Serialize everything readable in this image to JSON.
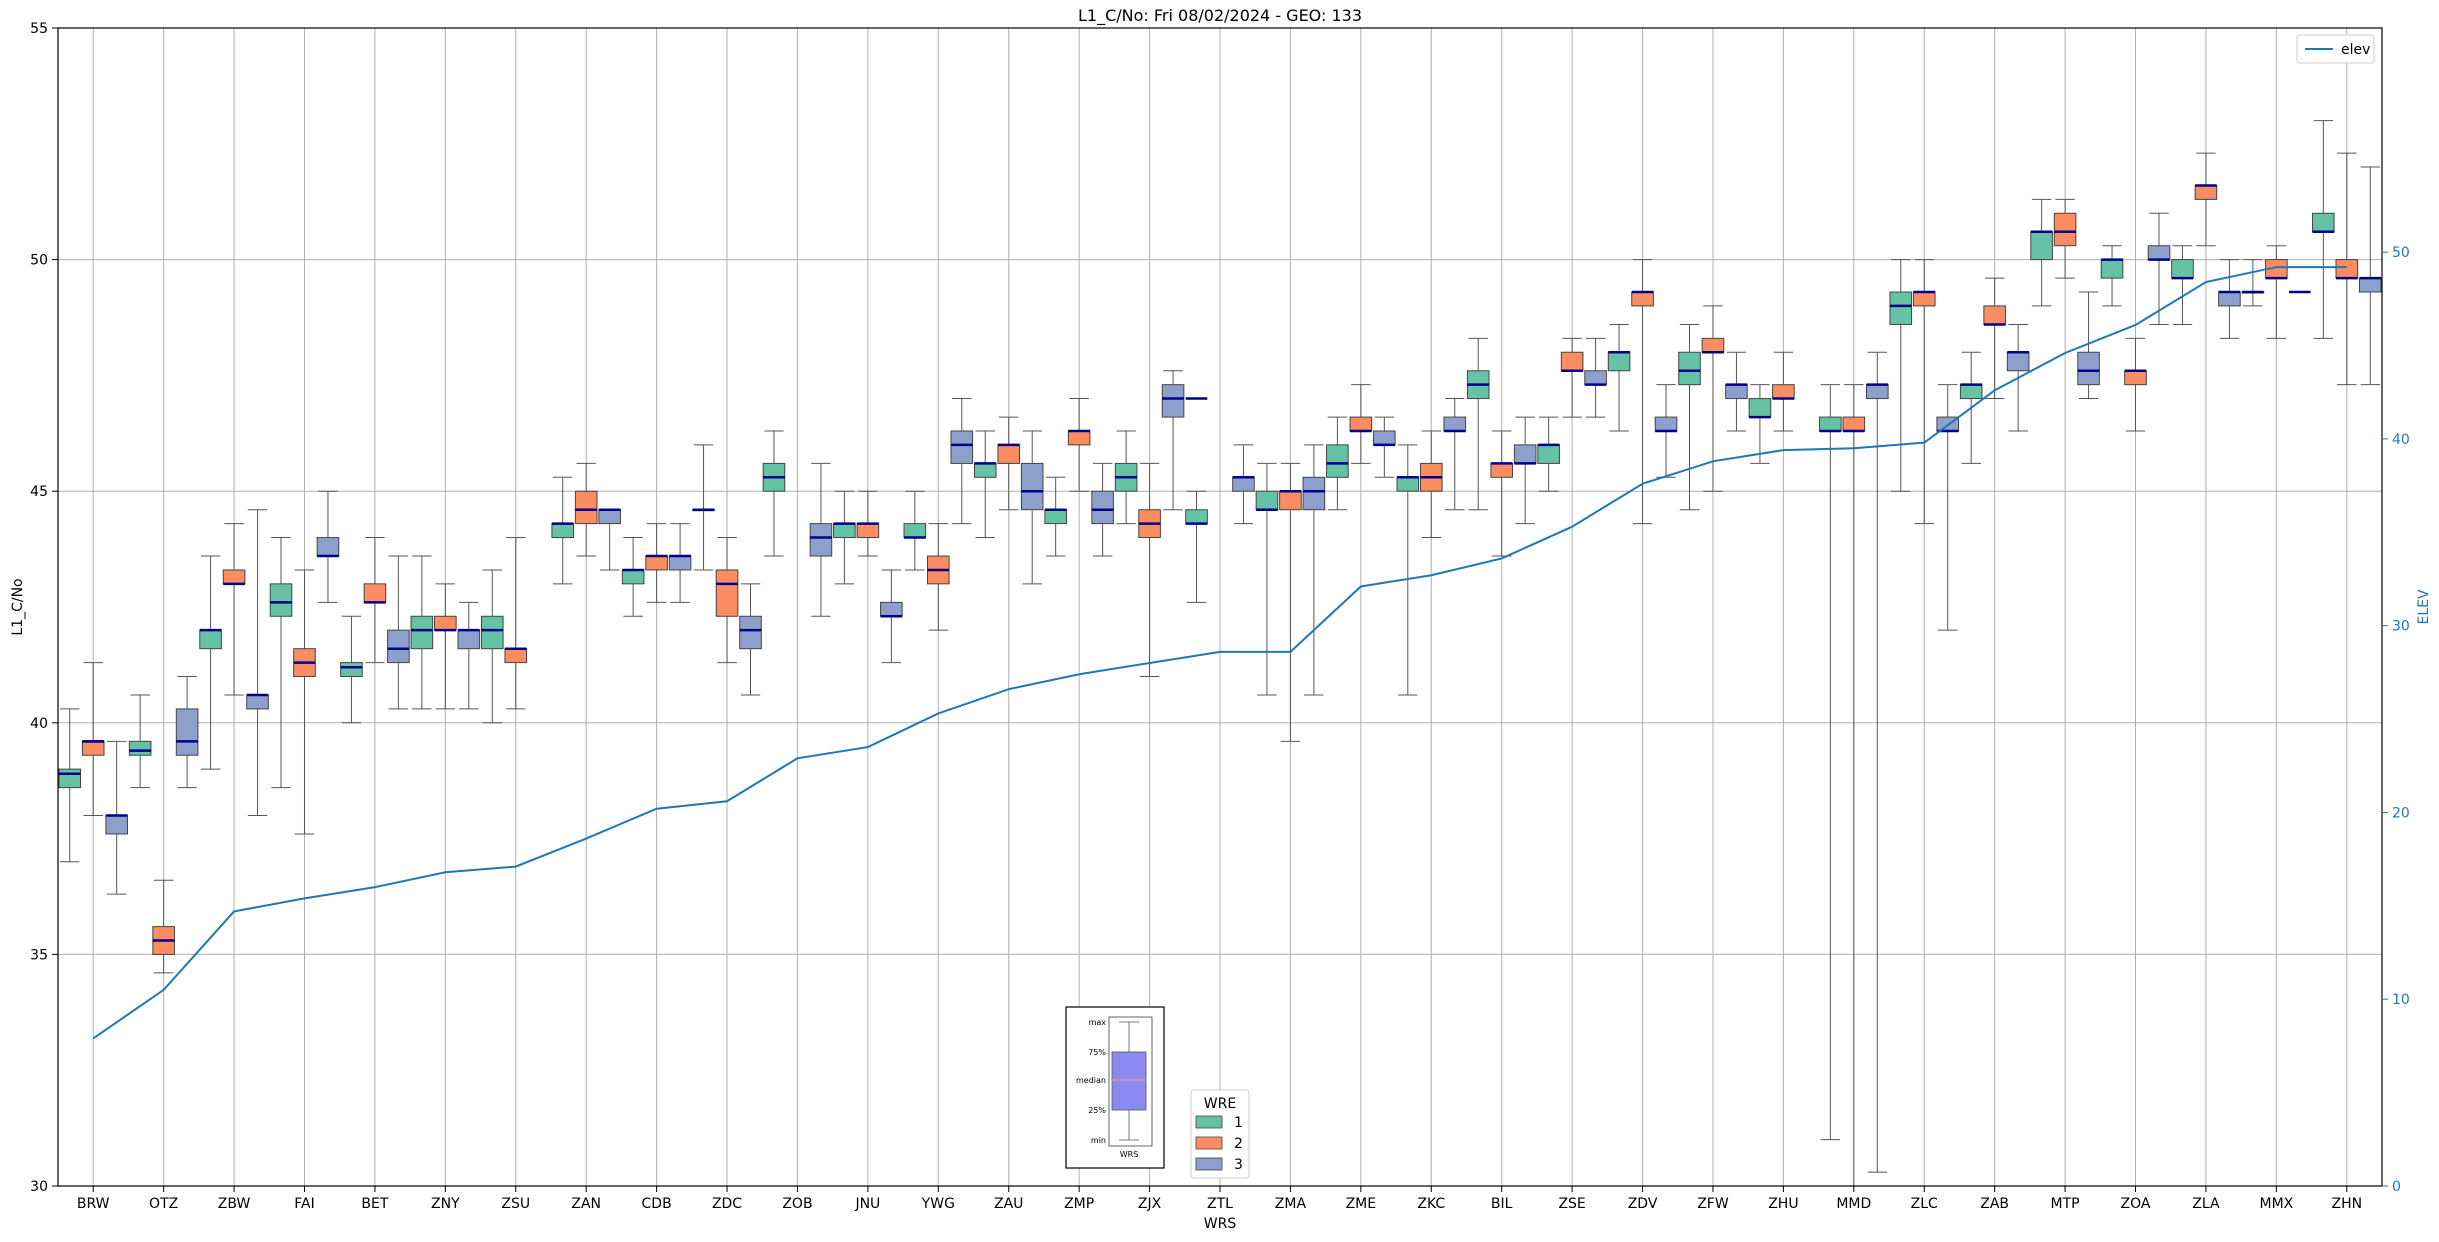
{
  "chart_data": {
    "type": "box",
    "title": "L1_C/No: Fri 08/02/2024 - GEO: 133",
    "xlabel": "WRS",
    "ylabel": "L1_C/No",
    "ylabel_right": "ELEV",
    "ylim": [
      30,
      55
    ],
    "ylim_right": [
      0,
      62
    ],
    "yticks": [
      30,
      35,
      40,
      45,
      50,
      55
    ],
    "yticks_right": [
      0,
      10,
      20,
      30,
      40,
      50
    ],
    "grid": true,
    "categories": [
      "BRW",
      "OTZ",
      "ZBW",
      "FAI",
      "BET",
      "ZNY",
      "ZSU",
      "ZAN",
      "CDB",
      "ZDC",
      "ZOB",
      "JNU",
      "YWG",
      "ZAU",
      "ZMP",
      "ZJX",
      "ZTL",
      "ZMA",
      "ZME",
      "ZKC",
      "BIL",
      "ZSE",
      "ZDV",
      "ZFW",
      "ZHU",
      "MMD",
      "ZLC",
      "ZAB",
      "MTP",
      "ZOA",
      "ZLA",
      "MMX",
      "ZHN"
    ],
    "wre_legend": {
      "title": "WRE",
      "entries": [
        {
          "label": "1",
          "color": "#66c2a5"
        },
        {
          "label": "2",
          "color": "#fc8d62"
        },
        {
          "label": "3",
          "color": "#8da0cb"
        }
      ]
    },
    "series": [
      {
        "name": "1",
        "color": "#66c2a5",
        "boxes": [
          [
            37.0,
            38.6,
            38.9,
            39.0,
            40.3
          ],
          [
            38.6,
            39.3,
            39.4,
            39.6,
            40.6
          ],
          [
            39.0,
            41.6,
            42.0,
            42.0,
            43.6
          ],
          [
            38.6,
            42.3,
            42.6,
            43.0,
            44.0
          ],
          [
            40.0,
            41.0,
            41.2,
            41.3,
            42.3
          ],
          [
            40.3,
            41.6,
            42.0,
            42.3,
            43.6
          ],
          [
            40.0,
            41.6,
            42.0,
            42.3,
            43.3
          ],
          [
            43.0,
            44.0,
            44.3,
            44.3,
            45.3
          ],
          [
            42.3,
            43.0,
            43.3,
            43.3,
            44.0
          ],
          [
            43.3,
            44.6,
            44.6,
            44.6,
            46.0
          ],
          [
            43.6,
            45.0,
            45.3,
            45.6,
            46.3
          ],
          [
            43.0,
            44.0,
            44.3,
            44.3,
            45.0
          ],
          [
            43.3,
            44.0,
            44.0,
            44.3,
            45.0
          ],
          [
            44.0,
            45.3,
            45.6,
            45.6,
            46.3
          ],
          [
            43.6,
            44.3,
            44.6,
            44.6,
            45.3
          ],
          [
            44.3,
            45.0,
            45.3,
            45.6,
            46.3
          ],
          [
            42.6,
            44.3,
            44.3,
            44.6,
            45.0
          ],
          [
            40.6,
            44.6,
            44.6,
            45.0,
            45.6
          ],
          [
            44.6,
            45.3,
            45.6,
            46.0,
            46.6
          ],
          [
            40.6,
            45.0,
            45.3,
            45.3,
            46.0
          ],
          [
            44.6,
            47.0,
            47.3,
            47.6,
            48.3
          ],
          [
            45.0,
            45.6,
            46.0,
            46.0,
            46.6
          ],
          [
            46.3,
            47.6,
            48.0,
            48.0,
            48.6
          ],
          [
            44.6,
            47.3,
            47.6,
            48.0,
            48.6
          ],
          [
            45.6,
            46.6,
            46.6,
            47.0,
            47.3
          ],
          [
            31.0,
            46.3,
            46.3,
            46.6,
            47.3
          ],
          [
            45.0,
            48.6,
            49.0,
            49.3,
            50.0
          ],
          [
            45.6,
            47.0,
            47.3,
            47.3,
            48.0
          ],
          [
            49.0,
            50.0,
            50.6,
            50.6,
            51.3
          ],
          [
            49.0,
            49.6,
            50.0,
            50.0,
            50.3
          ],
          [
            48.6,
            49.6,
            49.6,
            50.0,
            50.3
          ],
          [
            49.0,
            49.3,
            49.3,
            49.3,
            50.0
          ],
          [
            48.3,
            50.6,
            50.6,
            51.0,
            53.0
          ]
        ]
      },
      {
        "name": "2",
        "color": "#fc8d62",
        "boxes": [
          [
            38.0,
            39.3,
            39.6,
            39.6,
            41.3
          ],
          [
            34.6,
            35.0,
            35.3,
            35.6,
            36.6
          ],
          [
            40.6,
            43.0,
            43.0,
            43.3,
            44.3
          ],
          [
            37.6,
            41.0,
            41.3,
            41.6,
            43.3
          ],
          [
            41.3,
            42.6,
            42.6,
            43.0,
            44.0
          ],
          [
            40.3,
            42.0,
            42.0,
            42.3,
            43.0
          ],
          [
            40.3,
            41.3,
            41.6,
            41.6,
            44.0
          ],
          [
            43.6,
            44.3,
            44.6,
            45.0,
            45.6
          ],
          [
            42.6,
            43.3,
            43.6,
            43.6,
            44.3
          ],
          [
            41.3,
            42.3,
            43.0,
            43.3,
            44.0
          ],
          [
            null,
            null,
            null,
            null,
            null
          ],
          [
            43.6,
            44.0,
            44.3,
            44.3,
            45.0
          ],
          [
            42.0,
            43.0,
            43.3,
            43.6,
            44.3
          ],
          [
            44.6,
            45.6,
            46.0,
            46.0,
            46.6
          ],
          [
            45.0,
            46.0,
            46.3,
            46.3,
            47.0
          ],
          [
            41.0,
            44.0,
            44.3,
            44.6,
            45.6
          ],
          [
            null,
            null,
            null,
            null,
            null
          ],
          [
            39.6,
            44.6,
            45.0,
            45.0,
            45.6
          ],
          [
            45.6,
            46.3,
            46.3,
            46.6,
            47.3
          ],
          [
            44.0,
            45.0,
            45.3,
            45.6,
            46.3
          ],
          [
            43.6,
            45.3,
            45.6,
            45.6,
            46.3
          ],
          [
            46.6,
            47.6,
            47.6,
            48.0,
            48.3
          ],
          [
            44.3,
            49.0,
            49.3,
            49.3,
            50.0
          ],
          [
            45.0,
            48.0,
            48.0,
            48.3,
            49.0
          ],
          [
            46.3,
            47.0,
            47.0,
            47.3,
            48.0
          ],
          [
            30.0,
            46.3,
            46.3,
            46.6,
            47.3
          ],
          [
            44.3,
            49.0,
            49.3,
            49.3,
            50.0
          ],
          [
            47.0,
            48.6,
            48.6,
            49.0,
            49.6
          ],
          [
            49.6,
            50.3,
            50.6,
            51.0,
            51.3
          ],
          [
            46.3,
            47.3,
            47.6,
            47.6,
            48.3
          ],
          [
            50.3,
            51.3,
            51.6,
            51.6,
            52.3
          ],
          [
            48.3,
            49.6,
            49.6,
            50.0,
            50.3
          ],
          [
            47.3,
            49.6,
            49.6,
            50.0,
            52.3
          ]
        ]
      },
      {
        "name": "3",
        "color": "#8da0cb",
        "boxes": [
          [
            36.3,
            37.6,
            38.0,
            38.0,
            39.6
          ],
          [
            38.6,
            39.3,
            39.6,
            40.3,
            41.0
          ],
          [
            38.0,
            40.3,
            40.6,
            40.6,
            44.6
          ],
          [
            42.6,
            43.6,
            43.6,
            44.0,
            45.0
          ],
          [
            40.3,
            41.3,
            41.6,
            42.0,
            43.6
          ],
          [
            40.3,
            41.6,
            42.0,
            42.0,
            42.6
          ],
          [
            null,
            null,
            null,
            null,
            null
          ],
          [
            43.3,
            44.3,
            44.6,
            44.6,
            44.6
          ],
          [
            42.6,
            43.3,
            43.6,
            43.6,
            44.3
          ],
          [
            40.6,
            41.6,
            42.0,
            42.3,
            43.0
          ],
          [
            42.3,
            43.6,
            44.0,
            44.3,
            45.6
          ],
          [
            41.3,
            42.3,
            42.3,
            42.6,
            43.3
          ],
          [
            44.3,
            45.6,
            46.0,
            46.3,
            47.0
          ],
          [
            43.0,
            44.6,
            45.0,
            45.6,
            46.3
          ],
          [
            43.6,
            44.3,
            44.6,
            45.0,
            45.6
          ],
          [
            44.6,
            46.6,
            47.0,
            47.3,
            47.6
          ],
          [
            44.3,
            45.0,
            45.3,
            45.3,
            46.0
          ],
          [
            40.6,
            44.6,
            45.0,
            45.3,
            46.0
          ],
          [
            45.3,
            46.0,
            46.0,
            46.3,
            46.6
          ],
          [
            44.6,
            46.3,
            46.3,
            46.6,
            47.0
          ],
          [
            44.3,
            45.6,
            45.6,
            46.0,
            46.6
          ],
          [
            46.6,
            47.3,
            47.3,
            47.6,
            48.3
          ],
          [
            45.3,
            46.3,
            46.3,
            46.6,
            47.3
          ],
          [
            46.3,
            47.0,
            47.3,
            47.3,
            48.0
          ],
          [
            null,
            null,
            null,
            null,
            null
          ],
          [
            30.3,
            47.0,
            47.3,
            47.3,
            48.0
          ],
          [
            42.0,
            46.3,
            46.3,
            46.6,
            47.3
          ],
          [
            46.3,
            47.6,
            48.0,
            48.0,
            48.6
          ],
          [
            47.0,
            47.3,
            47.6,
            48.0,
            49.3
          ],
          [
            48.6,
            50.0,
            50.0,
            50.3,
            51.0
          ],
          [
            48.3,
            49.0,
            49.3,
            49.3,
            50.0
          ],
          [
            null,
            null,
            null,
            null,
            null
          ],
          [
            47.3,
            49.3,
            49.6,
            49.6,
            52.0
          ]
        ]
      }
    ],
    "single_markers": [
      {
        "series": "2",
        "category": "BRW",
        "value": 39.6
      },
      {
        "series": "1",
        "category": "ZDC",
        "value": 44.6
      },
      {
        "series": "1",
        "category": "ZTL",
        "value": 47.0
      },
      {
        "series": "3",
        "category": "MMX",
        "value": 49.3
      }
    ],
    "elev_line": {
      "name": "elev",
      "color": "#1f77b4",
      "values": [
        7.9,
        10.5,
        14.7,
        15.4,
        16.0,
        16.8,
        17.1,
        18.6,
        20.2,
        20.6,
        22.9,
        23.5,
        25.3,
        26.6,
        27.4,
        28.0,
        28.6,
        28.6,
        32.1,
        32.7,
        33.6,
        35.3,
        37.6,
        38.8,
        39.4,
        39.5,
        39.8,
        42.6,
        44.6,
        46.1,
        48.4,
        49.2,
        49.2
      ],
      "legend_position": "top-right"
    },
    "inset_legend": {
      "labels": [
        "max",
        "75%",
        "median",
        "25%",
        "min"
      ],
      "xlabel": "WRS",
      "box_color": "#8a8af0",
      "median_color": "#e08a9a"
    }
  }
}
